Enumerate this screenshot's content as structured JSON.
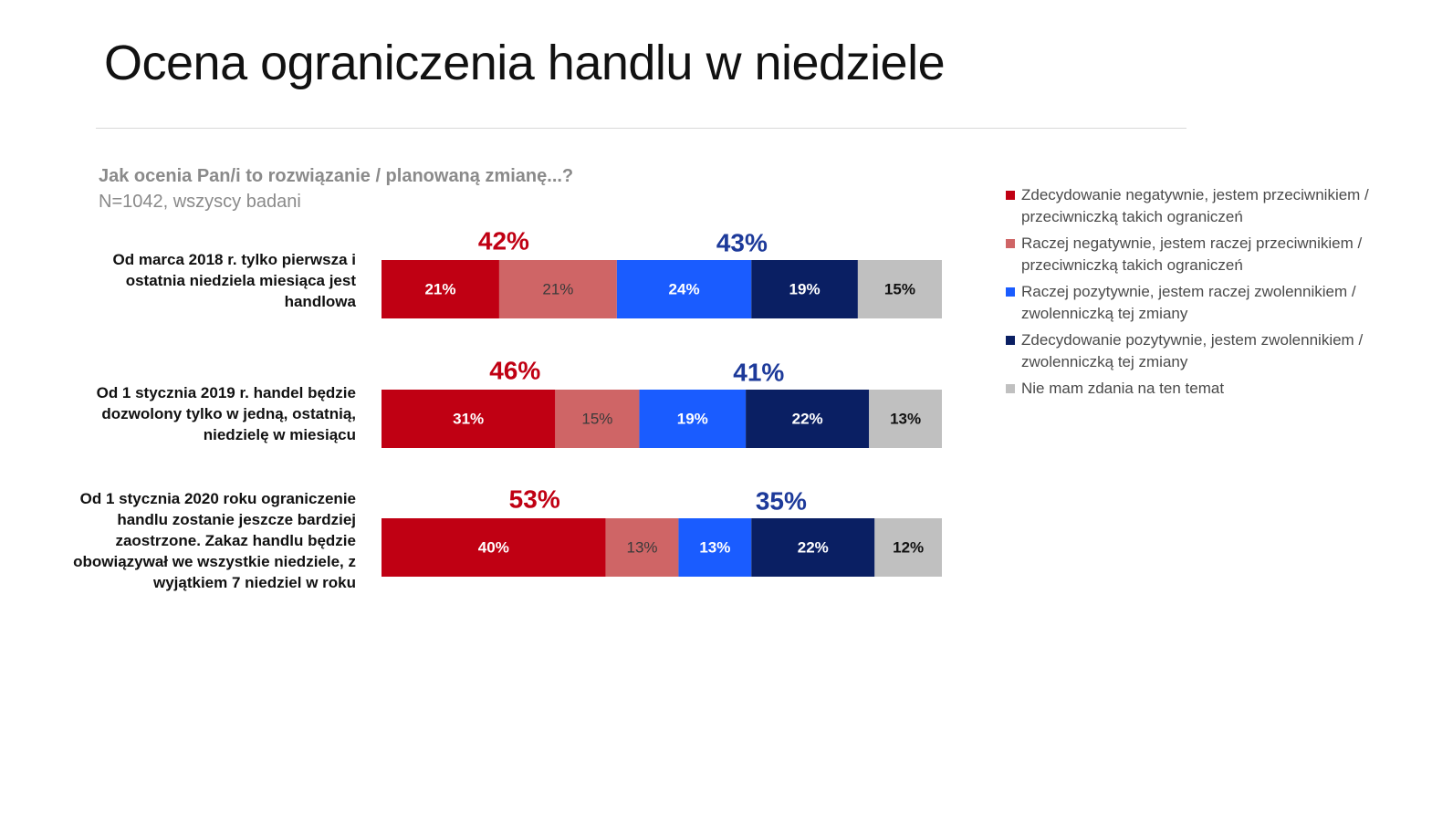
{
  "page": {
    "title": "Ocena ograniczenia handlu w niedziele"
  },
  "chart_data": {
    "type": "bar",
    "orientation": "horizontal-stacked-100",
    "subtitle": "Jak ocenia Pan/i to rozwiązanie / planowaną zmianę...?",
    "sample": "N=1042, wszyscy badani",
    "categories": [
      "Od marca 2018 r. tylko pierwsza i ostatnia niedziela miesiąca jest handlowa",
      "Od 1 stycznia 2019 r. handel będzie dozwolony tylko w jedną, ostatnią, niedzielę w miesiącu",
      "Od 1 stycznia 2020 roku ograniczenie handlu zostanie jeszcze bardziej zaostrzone. Zakaz handlu będzie obowiązywał we wszystkie niedziele, z wyjątkiem 7 niedziel w roku"
    ],
    "series": [
      {
        "name": "Zdecydowanie negatywnie, jestem przeciwnikiem / przeciwniczką takich ograniczeń",
        "color": "#c00013",
        "label_color": "#ffffff",
        "values": [
          21,
          31,
          40
        ],
        "labels": [
          "21%",
          "31%",
          "40%"
        ]
      },
      {
        "name": "Raczej negatywnie, jestem raczej przeciwnikiem / przeciwniczką takich ograniczeń",
        "color": "#cf6566",
        "label_color": "#3a3a3a",
        "values": [
          21,
          15,
          13
        ],
        "labels": [
          "21%",
          "15%",
          "13%"
        ]
      },
      {
        "name": "Raczej pozytywnie, jestem raczej zwolennikiem / zwolenniczką tej zmiany",
        "color": "#1a5cff",
        "label_color": "#ffffff",
        "values": [
          24,
          19,
          13
        ],
        "labels": [
          "24%",
          "19%",
          "13%"
        ]
      },
      {
        "name": "Zdecydowanie pozytywnie, jestem zwolennikiem / zwolenniczką tej zmiany",
        "color": "#0a1f63",
        "label_color": "#ffffff",
        "values": [
          19,
          22,
          22
        ],
        "labels": [
          "19%",
          "22%",
          "22%"
        ]
      },
      {
        "name": "Nie mam zdania na ten temat",
        "color": "#c0c0c0",
        "label_color": "#111111",
        "values": [
          15,
          13,
          12
        ],
        "labels": [
          "15%",
          "13%",
          "12%"
        ]
      }
    ],
    "negative_totals": {
      "values": [
        42,
        46,
        53
      ],
      "labels": [
        "42%",
        "46%",
        "53%"
      ],
      "color": "#c00013"
    },
    "positive_totals": {
      "values": [
        43,
        41,
        35
      ],
      "labels": [
        "43%",
        "41%",
        "35%"
      ],
      "color": "#1d3a9a"
    },
    "xlim": [
      0,
      100
    ],
    "legend": "right"
  }
}
